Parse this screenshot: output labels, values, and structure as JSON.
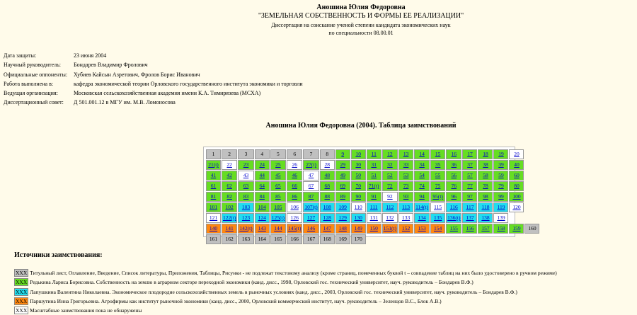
{
  "header": {
    "author": "Аношина Юлия Федоровна",
    "title": "\"ЗЕМЕЛЬНАЯ СОБСТВЕННОСТЬ И ФОРМЫ ЕЕ РЕАЛИЗАЦИИ\"",
    "subtitle": "Диссертация на соискание ученой степени кандидата экономических наук",
    "speciality": "по специальности 08.00.01"
  },
  "info": [
    [
      "Дата защиты:",
      "23 июня 2004"
    ],
    [
      "Научный руководитель:",
      "Бондарев Владимир Фролович"
    ],
    [
      "Официальные оппоненты:",
      "Хубиев Кайсын Азретович, Фролов Борис Иванович"
    ],
    [
      "Работа выполнена в:",
      "кафедра экономической теории Орловского государственного института экономики и торговли"
    ],
    [
      "Ведущая организация:",
      "Московская сельскохозяйственная академия имени К.А. Тимирязева (МСХА)"
    ],
    [
      "Диссертационный совет:",
      "Д 501.001.12 в МГУ им. М.В. Ломоносова"
    ]
  ],
  "table": {
    "title": "Аношина Юлия Федоровна (2004). Таблица заимствований",
    "rows": [
      {
        "labels": [
          "1",
          "2",
          "3",
          "4",
          "5",
          "6",
          "7",
          "8",
          "9",
          "10",
          "11",
          "12",
          "13",
          "14",
          "15",
          "16",
          "17",
          "18",
          "19",
          "20"
        ],
        "colors": [
          "#c0c0c0",
          "#c0c0c0",
          "#c0c0c0",
          "#c0c0c0",
          "#c0c0c0",
          "#c0c0c0",
          "#c0c0c0",
          "#c0c0c0",
          "#66dd22",
          "#66dd22",
          "#66dd22",
          "#66dd22",
          "#66dd22",
          "#66dd22",
          "#66dd22",
          "#66dd22",
          "#66dd22",
          "#66dd22",
          "#66dd22",
          "#ffffff"
        ]
      },
      {
        "labels": [
          "21(t)",
          "22",
          "23",
          "24",
          "25",
          "26",
          "27(t)",
          "28",
          "29",
          "30",
          "31",
          "32",
          "33",
          "34",
          "35",
          "36",
          "37",
          "38",
          "39",
          "40"
        ],
        "colors": [
          "#66dd22",
          "#ffffff",
          "#66dd22",
          "#66dd22",
          "#66dd22",
          "#ffffff",
          "#66dd22",
          "#ffffff",
          "#66dd22",
          "#66dd22",
          "#66dd22",
          "#66dd22",
          "#66dd22",
          "#66dd22",
          "#66dd22",
          "#66dd22",
          "#66dd22",
          "#66dd22",
          "#66dd22",
          "#66dd22"
        ]
      },
      {
        "labels": [
          "41",
          "42",
          "43",
          "44",
          "45",
          "46",
          "47",
          "48",
          "49",
          "50",
          "51",
          "52",
          "53",
          "54",
          "55",
          "56",
          "57",
          "58",
          "59",
          "60"
        ],
        "colors": [
          "#66dd22",
          "#66dd22",
          "#ffffff",
          "#66dd22",
          "#66dd22",
          "#66dd22",
          "#ffffff",
          "#66dd22",
          "#66dd22",
          "#66dd22",
          "#66dd22",
          "#66dd22",
          "#66dd22",
          "#66dd22",
          "#66dd22",
          "#66dd22",
          "#66dd22",
          "#66dd22",
          "#66dd22",
          "#66dd22"
        ]
      },
      {
        "labels": [
          "61",
          "62",
          "63",
          "64",
          "65",
          "66",
          "67",
          "68",
          "69",
          "70",
          "71(t)",
          "72",
          "73",
          "74",
          "75",
          "76",
          "77",
          "78",
          "79",
          "80"
        ],
        "colors": [
          "#66dd22",
          "#66dd22",
          "#66dd22",
          "#66dd22",
          "#66dd22",
          "#66dd22",
          "#ffffff",
          "#66dd22",
          "#66dd22",
          "#66dd22",
          "#66dd22",
          "#66dd22",
          "#66dd22",
          "#66dd22",
          "#66dd22",
          "#66dd22",
          "#66dd22",
          "#66dd22",
          "#66dd22",
          "#66dd22"
        ]
      },
      {
        "labels": [
          "81",
          "82",
          "83",
          "84",
          "85",
          "86",
          "87",
          "88",
          "89",
          "90",
          "91",
          "92",
          "93",
          "94",
          "95(t)",
          "96",
          "97",
          "98",
          "99",
          "100"
        ],
        "colors": [
          "#66dd22",
          "#66dd22",
          "#66dd22",
          "#66dd22",
          "#66dd22",
          "#66dd22",
          "#66dd22",
          "#66dd22",
          "#66dd22",
          "#66dd22",
          "#66dd22",
          "#ffffff",
          "#66dd22",
          "#66dd22",
          "#66dd22",
          "#66dd22",
          "#66dd22",
          "#66dd22",
          "#66dd22",
          "#66dd22"
        ]
      },
      {
        "labels": [
          "101",
          "102",
          "103",
          "104",
          "105",
          "106",
          "107(t)",
          "108",
          "109",
          "110",
          "111",
          "112",
          "113",
          "114(t)",
          "115",
          "116",
          "117",
          "118",
          "119",
          "120"
        ],
        "colors": [
          "#66dd22",
          "#66dd22",
          "#22ddee",
          "#66dd22",
          "#66dd22",
          "#ffffff",
          "#22ddee",
          "#22ddee",
          "#22ddee",
          "#ffffff",
          "#22ddee",
          "#22ddee",
          "#22ddee",
          "#22ddee",
          "#ffffff",
          "#22ddee",
          "#22ddee",
          "#22ddee",
          "#22ddee",
          "#ffffff"
        ]
      },
      {
        "labels": [
          "121",
          "122(t)",
          "123",
          "124",
          "125(t)",
          "126",
          "127",
          "128",
          "129",
          "130",
          "131",
          "132",
          "133",
          "134",
          "135",
          "136(t)",
          "137",
          "138",
          "139"
        ],
        "colors": [
          "#ffffff",
          "#22ddee",
          "#22ddee",
          "#22ddee",
          "#22ddee",
          "#ffffff",
          "#22ddee",
          "#22ddee",
          "#22ddee",
          "#22ddee",
          "#ffffff",
          "#ffffff",
          "#ffffff",
          "#22ddee",
          "#22ddee",
          "#22ddee",
          "#22ddee",
          "#22ddee",
          "#ffffff"
        ]
      },
      {
        "labels": [
          "140",
          "141",
          "142(t)",
          "143",
          "144",
          "145(t)",
          "146",
          "147",
          "148",
          "149",
          "150",
          "151(t)",
          "152",
          "153",
          "154",
          "155",
          "156",
          "157",
          "158",
          "159",
          "160"
        ],
        "colors": [
          "#ff8811",
          "#ff8811",
          "#ff8811",
          "#ff8811",
          "#ff8811",
          "#ff8811",
          "#ff8811",
          "#ff8811",
          "#ff8811",
          "#ff8811",
          "#ff8811",
          "#ff8811",
          "#ff8811",
          "#ff8811",
          "#ff8811",
          "#66dd22",
          "#66dd22",
          "#66dd22",
          "#66dd22",
          "#66dd22",
          "#c0c0c0"
        ]
      },
      {
        "labels": [
          "161",
          "162",
          "163",
          "164",
          "165",
          "166",
          "167",
          "168",
          "169",
          "170"
        ],
        "colors": [
          "#c0c0c0",
          "#c0c0c0",
          "#c0c0c0",
          "#c0c0c0",
          "#c0c0c0",
          "#c0c0c0",
          "#c0c0c0",
          "#c0c0c0",
          "#c0c0c0",
          "#c0c0c0"
        ]
      }
    ]
  },
  "sources": {
    "title": "Источники заимствования:",
    "items": [
      {
        "swatch": "XXX",
        "color": "#c0c0c0",
        "text": "Титульный лист, Оглавление, Введение, Список литературы, Приложения, Таблицы, Рисунки - не подлежат текстовому анализу (кроме страниц, помеченных буквой t – совпадение таблиц на них было удостоверено в ручном режиме)"
      },
      {
        "swatch": "XXX",
        "color": "#66dd22",
        "text": "Редькина Лариса Борисовна. Собственность на землю в аграрном секторе переходной экономики (канд. дисс., 1998, Орловский гос. технический университет, науч. руководитель – Бондарев В.Ф.)"
      },
      {
        "swatch": "XXX",
        "color": "#22ddee",
        "text": "Лапушкина Валентина Николаевна. Экономическое плодородие сельскохозяйственных земель в рыночных условиях (канд. дисс., 2003, Орловский гос. технический университет, науч. руководитель – Бондарев В.Ф.)"
      },
      {
        "swatch": "XXX",
        "color": "#ff8811",
        "text": "Паршутина Инна Григорьевна. Агрофирмы как институт рыночной экономики (канд. дисс., 2000, Орловский коммерческий институт, науч. руководитель – Зеленцов В.С., Блок А.В.)"
      },
      {
        "swatch": "XXX",
        "color": "#ffffff",
        "text": "Масштабные заимствования пока не обнаружены"
      }
    ]
  }
}
